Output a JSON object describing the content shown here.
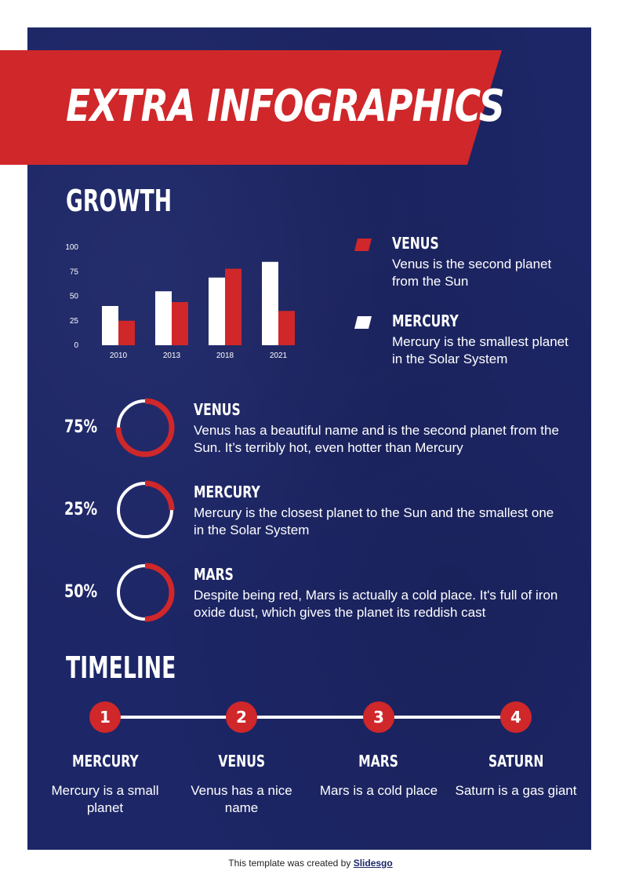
{
  "title": "EXTRA INFOGRAPHICS",
  "growth": {
    "heading": "GROWTH",
    "legend": [
      {
        "title": "VENUS",
        "text": "Venus is the second planet from the Sun",
        "color": "#d0272a"
      },
      {
        "title": "MERCURY",
        "text": "Mercury is the smallest planet in the Solar System",
        "color": "#ffffff"
      }
    ]
  },
  "chart_data": {
    "type": "bar",
    "categories": [
      "2010",
      "2013",
      "2018",
      "2021"
    ],
    "series": [
      {
        "name": "MERCURY",
        "color": "#ffffff",
        "values": [
          40,
          55,
          69,
          85
        ]
      },
      {
        "name": "VENUS",
        "color": "#d0272a",
        "values": [
          25,
          44,
          78,
          35
        ]
      }
    ],
    "yticks": [
      0,
      25,
      50,
      75,
      100
    ],
    "ylim": [
      0,
      100
    ],
    "grid": false,
    "legend": "right"
  },
  "stats": [
    {
      "percent": "75%",
      "value": 0.75,
      "title": "VENUS",
      "text": "Venus has a beautiful name and is the second planet from the Sun.  It’s terribly hot, even hotter than  Mercury"
    },
    {
      "percent": "25%",
      "value": 0.25,
      "title": "MERCURY",
      "text": "Mercury is the closest planet to the Sun and the smallest one in the Solar System"
    },
    {
      "percent": "50%",
      "value": 0.5,
      "title": "MARS",
      "text": "Despite being red,  Mars is actually a cold place.  It's full of iron oxide dust, which gives the planet its reddish cast"
    }
  ],
  "timeline": {
    "heading": "TIMELINE",
    "steps": [
      {
        "number": "1",
        "title": "MERCURY",
        "text": "Mercury is a small planet"
      },
      {
        "number": "2",
        "title": "VENUS",
        "text": "Venus has a nice name"
      },
      {
        "number": "3",
        "title": "MARS",
        "text": "Mars is a cold place"
      },
      {
        "number": "4",
        "title": "SATURN",
        "text": "Saturn is a gas giant"
      }
    ]
  },
  "credit": {
    "text": "This template was created by ",
    "link": "Slidesgo"
  },
  "colors": {
    "background": "#1d2666",
    "accent": "#d0272a",
    "text": "#ffffff"
  }
}
